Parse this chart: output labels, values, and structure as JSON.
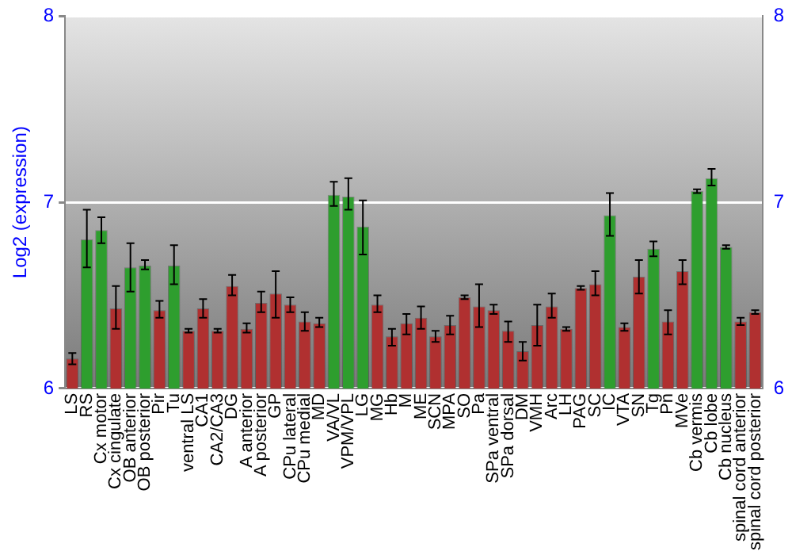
{
  "chart_data": {
    "type": "bar",
    "ylabel": "Log2 (expression)",
    "categories": [
      "LS",
      "RS",
      "Cx motor",
      "Cx cingulate",
      "OB anterior",
      "OB posterior",
      "Pir",
      "Tu",
      "ventral LS",
      "CA1",
      "CA2/CA3",
      "DG",
      "A anterior",
      "A posterior",
      "GP",
      "CPu lateral",
      "CPu medial",
      "MD",
      "VA/VL",
      "VPM/VPL",
      "LG",
      "MG",
      "Hb",
      "M",
      "ME",
      "SCN",
      "MPA",
      "SO",
      "Pa",
      "SPa ventral",
      "SPa dorsal",
      "DM",
      "VMH",
      "Arc",
      "LH",
      "PAG",
      "SC",
      "IC",
      "VTA",
      "SN",
      "Tg",
      "Pn",
      "MVe",
      "Cb vermis",
      "Cb lobe",
      "Cb nucleus",
      "spinal cord anterior",
      "spinal cord posterior"
    ],
    "values": [
      6.16,
      6.8,
      6.85,
      6.43,
      6.65,
      6.66,
      6.42,
      6.66,
      6.31,
      6.43,
      6.31,
      6.55,
      6.32,
      6.46,
      6.51,
      6.45,
      6.36,
      6.35,
      7.04,
      7.03,
      6.87,
      6.45,
      6.28,
      6.35,
      6.38,
      6.28,
      6.34,
      6.49,
      6.44,
      6.42,
      6.31,
      6.2,
      6.34,
      6.44,
      6.32,
      6.54,
      6.56,
      6.93,
      6.33,
      6.6,
      6.75,
      6.36,
      6.63,
      7.06,
      7.13,
      6.76,
      6.36,
      6.41
    ],
    "errors": [
      [
        6.13,
        6.19
      ],
      [
        6.65,
        6.96
      ],
      [
        6.78,
        6.92
      ],
      [
        6.32,
        6.55
      ],
      [
        6.52,
        6.78
      ],
      [
        6.64,
        6.69
      ],
      [
        6.38,
        6.47
      ],
      [
        6.56,
        6.77
      ],
      [
        6.3,
        6.32
      ],
      [
        6.38,
        6.48
      ],
      [
        6.3,
        6.32
      ],
      [
        6.5,
        6.61
      ],
      [
        6.3,
        6.35
      ],
      [
        6.41,
        6.52
      ],
      [
        6.38,
        6.63
      ],
      [
        6.41,
        6.49
      ],
      [
        6.31,
        6.41
      ],
      [
        6.33,
        6.38
      ],
      [
        6.98,
        7.11
      ],
      [
        6.96,
        7.13
      ],
      [
        6.72,
        7.01
      ],
      [
        6.41,
        6.5
      ],
      [
        6.23,
        6.32
      ],
      [
        6.29,
        6.4
      ],
      [
        6.32,
        6.44
      ],
      [
        6.25,
        6.31
      ],
      [
        6.29,
        6.39
      ],
      [
        6.48,
        6.5
      ],
      [
        6.33,
        6.56
      ],
      [
        6.4,
        6.45
      ],
      [
        6.25,
        6.36
      ],
      [
        6.15,
        6.25
      ],
      [
        6.23,
        6.45
      ],
      [
        6.38,
        6.51
      ],
      [
        6.31,
        6.33
      ],
      [
        6.53,
        6.55
      ],
      [
        6.5,
        6.63
      ],
      [
        6.82,
        7.05
      ],
      [
        6.31,
        6.35
      ],
      [
        6.51,
        6.69
      ],
      [
        6.71,
        6.79
      ],
      [
        6.29,
        6.42
      ],
      [
        6.56,
        6.69
      ],
      [
        7.05,
        7.07
      ],
      [
        7.09,
        7.18
      ],
      [
        6.75,
        6.77
      ],
      [
        6.34,
        6.38
      ],
      [
        6.4,
        6.42
      ]
    ],
    "colors": [
      "#b03030",
      "#2e9e2e",
      "#2e9e2e",
      "#b03030",
      "#2e9e2e",
      "#2e9e2e",
      "#b03030",
      "#2e9e2e",
      "#b03030",
      "#b03030",
      "#b03030",
      "#b03030",
      "#b03030",
      "#b03030",
      "#b03030",
      "#b03030",
      "#b03030",
      "#b03030",
      "#2e9e2e",
      "#2e9e2e",
      "#2e9e2e",
      "#b03030",
      "#b03030",
      "#b03030",
      "#b03030",
      "#b03030",
      "#b03030",
      "#b03030",
      "#b03030",
      "#b03030",
      "#b03030",
      "#b03030",
      "#b03030",
      "#b03030",
      "#b03030",
      "#b03030",
      "#b03030",
      "#2e9e2e",
      "#b03030",
      "#b03030",
      "#2e9e2e",
      "#b03030",
      "#b03030",
      "#2e9e2e",
      "#2e9e2e",
      "#2e9e2e",
      "#b03030",
      "#b03030"
    ],
    "ylim": [
      6,
      8
    ],
    "yticks": [
      6,
      7,
      8
    ],
    "y2lim": [
      6,
      8
    ],
    "y2ticks": [
      6,
      7,
      8
    ],
    "grid": "y",
    "legend": false
  }
}
